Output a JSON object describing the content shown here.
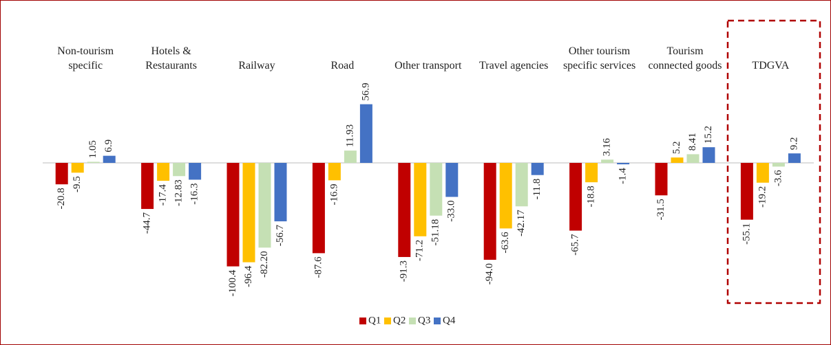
{
  "chart_data": {
    "type": "bar",
    "categories": [
      "Non-tourism specific",
      "Hotels & Restaurants",
      "Railway",
      "Road",
      "Other transport",
      "Travel agencies",
      "Other tourism specific services",
      "Tourism connected goods",
      "TDGVA"
    ],
    "series": [
      {
        "name": "Q1",
        "color": "#c00000",
        "values": [
          -20.8,
          -44.7,
          -100.4,
          -87.6,
          -91.3,
          -94.0,
          -65.7,
          -31.5,
          -55.1
        ],
        "value_labels": [
          "-20.8",
          "-44.7",
          "-100.4",
          "-87.6",
          "-91.3",
          "-94.0",
          "-65.7",
          "-31.5",
          "-55.1"
        ]
      },
      {
        "name": "Q2",
        "color": "#ffc000",
        "values": [
          -9.5,
          -17.4,
          -96.4,
          -16.9,
          -71.2,
          -63.6,
          -18.8,
          5.2,
          -19.2
        ],
        "value_labels": [
          "-9.5",
          "-17.4",
          "-96.4",
          "-16.9",
          "-71.2",
          "-63.6",
          "-18.8",
          "5.2",
          "-19.2"
        ]
      },
      {
        "name": "Q3",
        "color": "#c5e0b4",
        "values": [
          1.05,
          -12.83,
          -82.2,
          11.93,
          -51.18,
          -42.17,
          3.16,
          8.41,
          -3.6
        ],
        "value_labels": [
          "1.05",
          "-12.83",
          "-82.20",
          "11.93",
          "-51.18",
          "-42.17",
          "3.16",
          "8.41",
          "-3.6"
        ]
      },
      {
        "name": "Q4",
        "color": "#4472c4",
        "values": [
          6.9,
          -16.3,
          -56.7,
          56.9,
          -33.0,
          -11.8,
          -1.4,
          15.2,
          9.2
        ],
        "value_labels": [
          "6.9",
          "-16.3",
          "-56.7",
          "56.9",
          "-33.0",
          "-11.8",
          "-1.4",
          "15.2",
          "9.2"
        ]
      }
    ],
    "legend": "bottom"
  }
}
